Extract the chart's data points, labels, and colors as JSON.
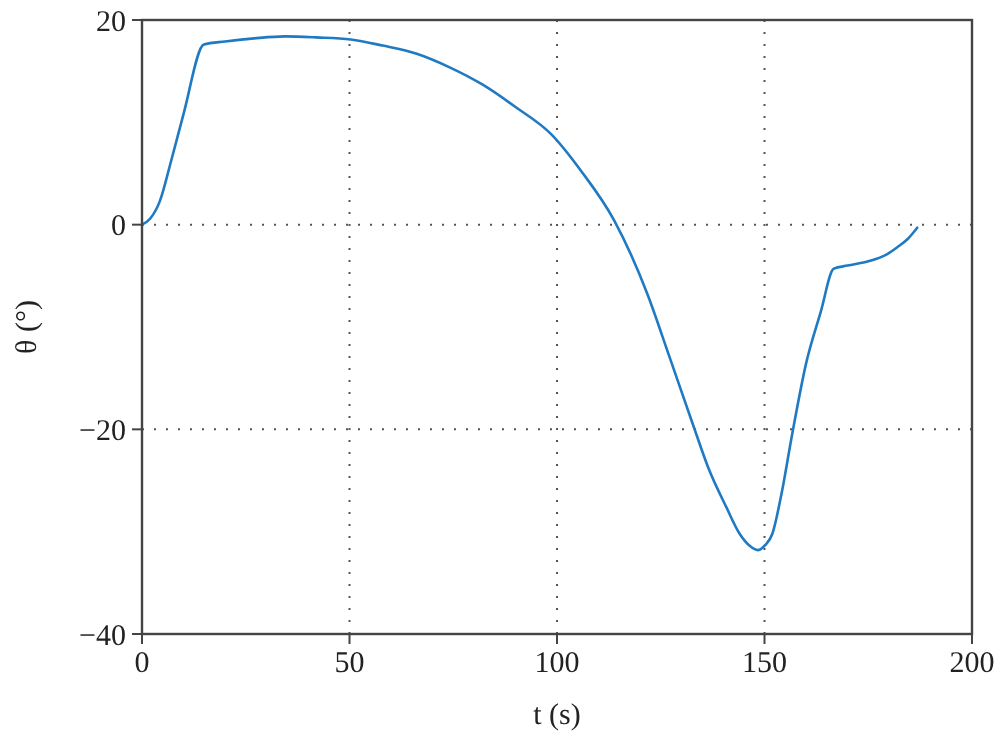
{
  "chart_data": {
    "type": "line",
    "xlabel": "t (s)",
    "ylabel": "θ (°)",
    "xlim": [
      0,
      200
    ],
    "ylim": [
      -40,
      20
    ],
    "xticks": [
      0,
      50,
      100,
      150,
      200
    ],
    "yticks": [
      -40,
      -20,
      0,
      20
    ],
    "grid": true,
    "line_style": "solid",
    "marker": "none",
    "series": [
      {
        "color": "#1f7ac4",
        "x": [
          0,
          2,
          4.3,
          7,
          10,
          14.9,
          20,
          27,
          34.4,
          42,
          50.3,
          58,
          66.2,
          74,
          82,
          90,
          98.7,
          105.9,
          113.8,
          121.8,
          127,
          132.9,
          136.5,
          140.8,
          144,
          146.5,
          148.4,
          150.2,
          151.9,
          154,
          156.7,
          160,
          163.5,
          166.7,
          170,
          175.7,
          179,
          182,
          184.5,
          186.8
        ],
        "values": [
          0,
          0.6,
          2.3,
          6.2,
          10.8,
          17.6,
          17.9,
          18.2,
          18.4,
          18.3,
          18.1,
          17.5,
          16.7,
          15.4,
          13.7,
          11.5,
          8.8,
          5.2,
          0.4,
          -6.8,
          -12.8,
          -19.7,
          -23.8,
          -27.6,
          -30.2,
          -31.4,
          -31.8,
          -31.3,
          -30.2,
          -26.5,
          -20.4,
          -13.6,
          -8.6,
          -4.3,
          -4,
          -3.5,
          -3,
          -2.2,
          -1.4,
          -0.3
        ]
      }
    ]
  }
}
